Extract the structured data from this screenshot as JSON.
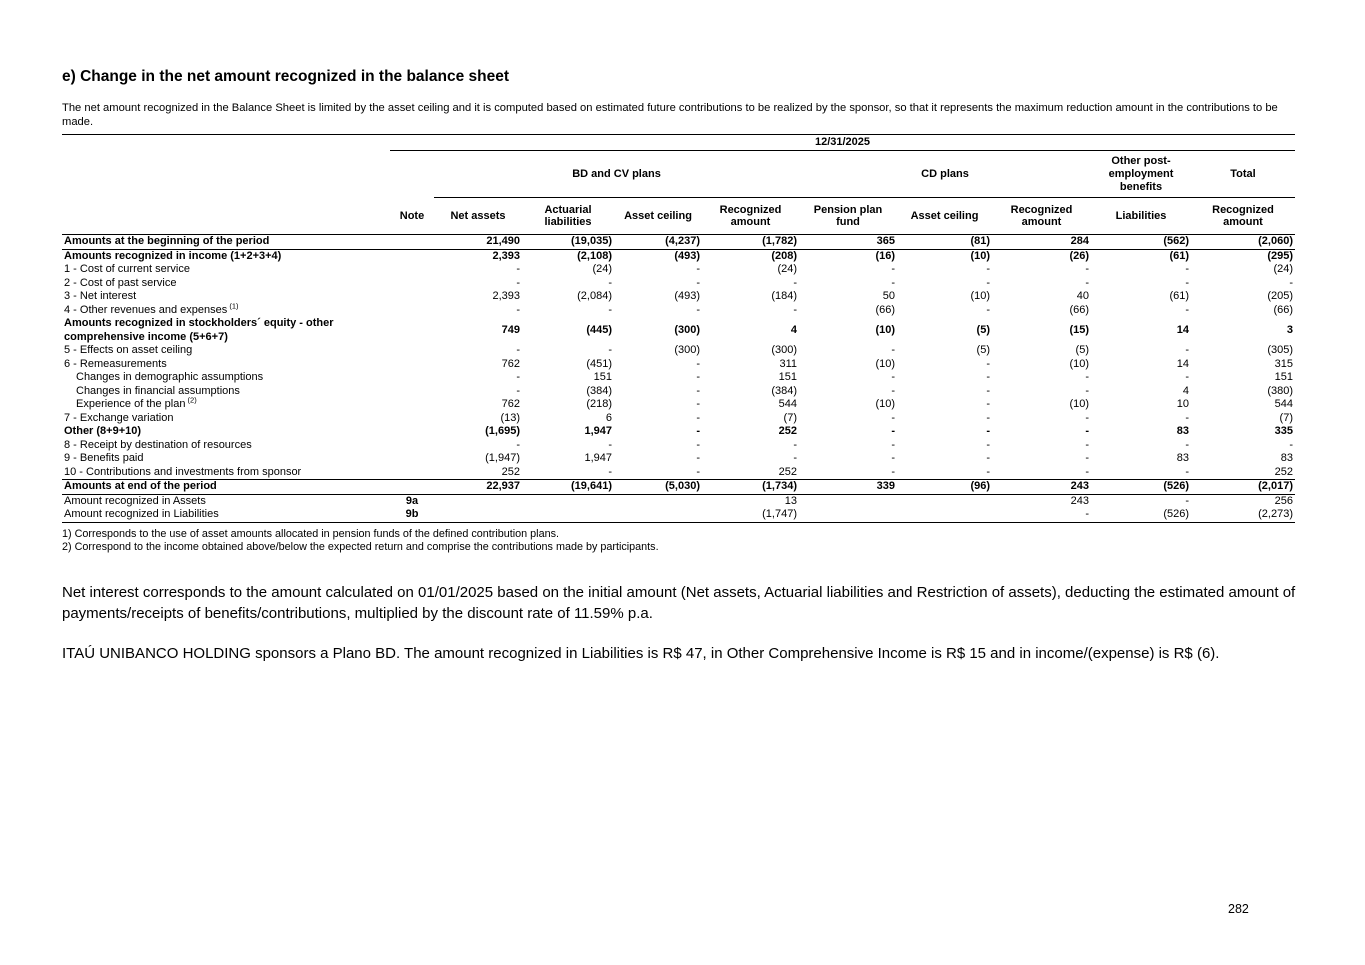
{
  "page": {
    "heading": "e) Change in the net amount recognized in the balance sheet",
    "intro": "The net amount recognized in the Balance Sheet is limited by the asset ceiling and it is computed based on estimated future contributions to be realized by the sponsor, so that it represents the maximum reduction amount in the contributions to be made.",
    "page_number": "282"
  },
  "table": {
    "date_header": "12/31/2025",
    "groups": [
      {
        "label": "BD and CV plans",
        "span": 4,
        "underline": true
      },
      {
        "label": "CD plans",
        "span": 3,
        "underline": true
      },
      {
        "label": "Other post-employment benefits",
        "span": 1,
        "underline": true
      },
      {
        "label": "Total",
        "span": 1,
        "underline": true
      }
    ],
    "columns": [
      "Note",
      "Net assets",
      "Actuarial liabilities",
      "Asset ceiling",
      "Recognized amount",
      "Pension plan fund",
      "Asset ceiling",
      "Recognized amount",
      "Liabilities",
      "Recognized amount"
    ],
    "rows": [
      {
        "label": "Amounts at the beginning of the period",
        "bold": true,
        "border": "bottom",
        "note": "",
        "values": [
          "21,490",
          "(19,035)",
          "(4,237)",
          "(1,782)",
          "365",
          "(81)",
          "284",
          "(562)",
          "(2,060)"
        ]
      },
      {
        "label": "Amounts recognized in income (1+2+3+4)",
        "bold": true,
        "note": "",
        "values": [
          "2,393",
          "(2,108)",
          "(493)",
          "(208)",
          "(16)",
          "(10)",
          "(26)",
          "(61)",
          "(295)"
        ]
      },
      {
        "label": "1 - Cost of current service",
        "note": "",
        "values": [
          "-",
          "(24)",
          "-",
          "(24)",
          "-",
          "-",
          "-",
          "-",
          "(24)"
        ]
      },
      {
        "label": "2 - Cost of past service",
        "note": "",
        "values": [
          "-",
          "-",
          "-",
          "-",
          "-",
          "-",
          "-",
          "-",
          "-"
        ]
      },
      {
        "label": "3 - Net interest",
        "note": "",
        "values": [
          "2,393",
          "(2,084)",
          "(493)",
          "(184)",
          "50",
          "(10)",
          "40",
          "(61)",
          "(205)"
        ]
      },
      {
        "label": "4 - Other revenues and expenses",
        "sup": "(1)",
        "note": "",
        "values": [
          "-",
          "-",
          "-",
          "-",
          "(66)",
          "-",
          "(66)",
          "-",
          "(66)"
        ]
      },
      {
        "label": "Amounts recognized in stockholders´ equity - other comprehensive income  (5+6+7)",
        "bold": true,
        "note": "",
        "values": [
          "749",
          "(445)",
          "(300)",
          "4",
          "(10)",
          "(5)",
          "(15)",
          "14",
          "3"
        ]
      },
      {
        "label": "5 - Effects on asset ceiling",
        "note": "",
        "values": [
          "-",
          "-",
          "(300)",
          "(300)",
          "-",
          "(5)",
          "(5)",
          "-",
          "(305)"
        ]
      },
      {
        "label": "6 - Remeasurements",
        "note": "",
        "values": [
          "762",
          "(451)",
          "-",
          "311",
          "(10)",
          "-",
          "(10)",
          "14",
          "315"
        ]
      },
      {
        "label": "Changes in demographic assumptions",
        "indent": true,
        "note": "",
        "values": [
          "-",
          "151",
          "-",
          "151",
          "-",
          "-",
          "-",
          "-",
          "151"
        ]
      },
      {
        "label": "Changes in financial assumptions",
        "indent": true,
        "note": "",
        "values": [
          "-",
          "(384)",
          "-",
          "(384)",
          "-",
          "-",
          "-",
          "4",
          "(380)"
        ]
      },
      {
        "label": "Experience of the plan",
        "sup": "(2)",
        "indent": true,
        "note": "",
        "values": [
          "762",
          "(218)",
          "-",
          "544",
          "(10)",
          "-",
          "(10)",
          "10",
          "544"
        ]
      },
      {
        "label": "7 - Exchange variation",
        "note": "",
        "values": [
          "(13)",
          "6",
          "-",
          "(7)",
          "-",
          "-",
          "-",
          "-",
          "(7)"
        ]
      },
      {
        "label": "Other (8+9+10)",
        "bold": true,
        "note": "",
        "values": [
          "(1,695)",
          "1,947",
          "-",
          "252",
          "-",
          "-",
          "-",
          "83",
          "335"
        ]
      },
      {
        "label": "8 - Receipt by destination of resources",
        "note": "",
        "values": [
          "-",
          "-",
          "-",
          "-",
          "-",
          "-",
          "-",
          "-",
          "-"
        ]
      },
      {
        "label": "9 - Benefits paid",
        "note": "",
        "values": [
          "(1,947)",
          "1,947",
          "-",
          "-",
          "-",
          "-",
          "-",
          "83",
          "83"
        ]
      },
      {
        "label": "10 - Contributions and investments from sponsor",
        "note": "",
        "values": [
          "252",
          "-",
          "-",
          "252",
          "-",
          "-",
          "-",
          "-",
          "252"
        ]
      },
      {
        "label": "Amounts at end of the period",
        "bold": true,
        "border": "top-bottom",
        "note": "",
        "values": [
          "22,937",
          "(19,641)",
          "(5,030)",
          "(1,734)",
          "339",
          "(96)",
          "243",
          "(526)",
          "(2,017)"
        ]
      },
      {
        "label": "Amount recognized in Assets",
        "note": "9a",
        "values": [
          "",
          "",
          "",
          "13",
          "",
          "",
          "243",
          "-",
          "256"
        ]
      },
      {
        "label": "Amount recognized in Liabilities",
        "note": "9b",
        "border": "bottom",
        "values": [
          "",
          "",
          "",
          "(1,747)",
          "",
          "",
          "-",
          "(526)",
          "(2,273)"
        ]
      }
    ],
    "footnotes": [
      "1) Corresponds to the use of asset amounts allocated in pension funds of the defined contribution plans.",
      "2) Correspond to the income obtained above/below the expected return and comprise the contributions made by participants."
    ]
  },
  "paragraphs": [
    "Net interest corresponds to the amount calculated on 01/01/2025 based on the initial amount (Net assets, Actuarial liabilities and Restriction of assets), deducting the estimated amount of payments/receipts of benefits/contributions, multiplied by the discount rate of 11.59% p.a.",
    "ITAÚ UNIBANCO HOLDING sponsors a Plano BD. The amount recognized in Liabilities is R$ 47, in Other Comprehensive Income is R$ 15 and in income/(expense) is R$ (6)."
  ]
}
